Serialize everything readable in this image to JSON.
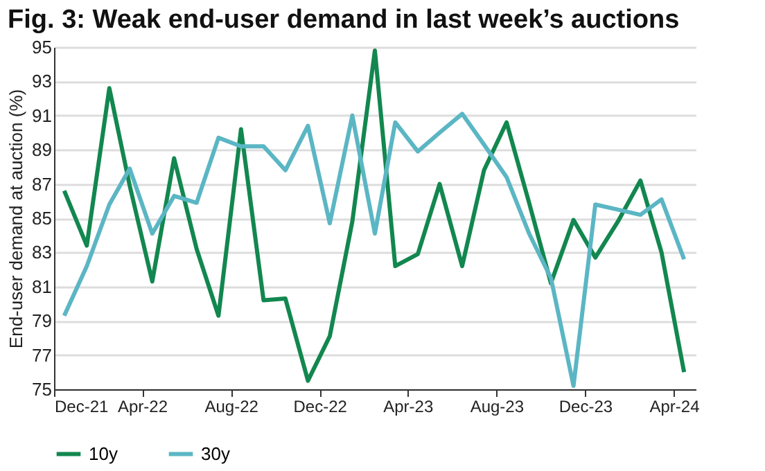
{
  "chart_data": {
    "type": "line",
    "title": "Fig. 3: Weak end-user demand in last week’s auctions",
    "ylabel": "End-user demand at auction (%)",
    "x": [
      "2021-12-15",
      "2022-01-15",
      "2022-02-15",
      "2022-03-15",
      "2022-04-15",
      "2022-05-15",
      "2022-06-15",
      "2022-07-15",
      "2022-08-15",
      "2022-09-15",
      "2022-10-15",
      "2022-11-15",
      "2022-12-15",
      "2023-01-15",
      "2023-02-15",
      "2023-03-15",
      "2023-04-15",
      "2023-05-15",
      "2023-06-15",
      "2023-07-15",
      "2023-08-15",
      "2023-09-15",
      "2023-10-15",
      "2023-11-15",
      "2023-12-15",
      "2024-01-15",
      "2024-02-15",
      "2024-03-15",
      "2024-04-15"
    ],
    "series": [
      {
        "name": "10y",
        "color": "#12874f",
        "values": [
          86.6,
          83.4,
          92.6,
          86.9,
          81.3,
          88.5,
          83.2,
          79.3,
          90.2,
          80.2,
          80.3,
          75.5,
          78.1,
          84.8,
          94.8,
          82.2,
          82.9,
          87.0,
          82.2,
          87.8,
          90.6,
          85.9,
          81.2,
          84.9,
          82.7,
          84.8,
          87.2,
          83.0,
          76.0
        ]
      },
      {
        "name": "30y",
        "color": "#5bb6c4",
        "values": [
          79.3,
          82.2,
          85.8,
          87.9,
          84.1,
          86.3,
          85.9,
          89.7,
          89.2,
          89.2,
          87.8,
          90.4,
          84.7,
          91.0,
          84.1,
          90.6,
          88.9,
          90.0,
          91.1,
          89.3,
          87.4,
          84.1,
          81.5,
          75.2,
          85.8,
          85.5,
          85.2,
          86.1,
          82.6
        ]
      }
    ],
    "xlim": [
      "2021-12-01",
      "2024-05-01"
    ],
    "xticks": [
      {
        "value": "2021-12-01",
        "label": "Dec-21"
      },
      {
        "value": "2022-04-01",
        "label": "Apr-22"
      },
      {
        "value": "2022-08-01",
        "label": "Aug-22"
      },
      {
        "value": "2022-12-01",
        "label": "Dec-22"
      },
      {
        "value": "2023-04-01",
        "label": "Apr-23"
      },
      {
        "value": "2023-08-01",
        "label": "Aug-23"
      },
      {
        "value": "2023-12-01",
        "label": "Dec-23"
      },
      {
        "value": "2024-04-01",
        "label": "Apr-24"
      }
    ],
    "ylim": [
      75,
      95
    ],
    "yticks": [
      75,
      77,
      79,
      81,
      83,
      85,
      87,
      89,
      91,
      93,
      95
    ],
    "grid": "y",
    "legend": "bottom",
    "marker": "none",
    "line_style": "solid"
  }
}
